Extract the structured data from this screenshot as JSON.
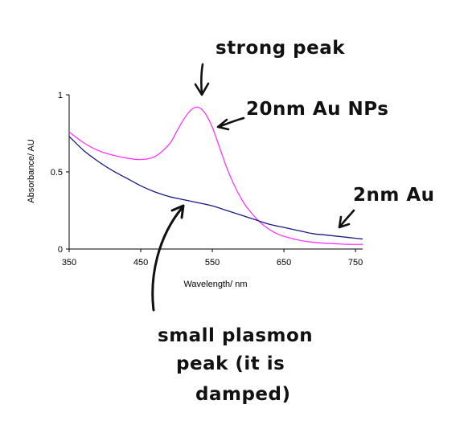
{
  "chart_data": {
    "type": "line",
    "xlabel": "Wavelength/ nm",
    "ylabel": "Absorbance/ AU",
    "xlim": [
      350,
      760
    ],
    "ylim": [
      0,
      1
    ],
    "x_ticks": [
      "350",
      "450",
      "550",
      "650",
      "750"
    ],
    "y_ticks": [
      "0",
      "0.5",
      "1"
    ],
    "series": [
      {
        "name": "20nm Au NPs",
        "color": "#ff33ff",
        "x": [
          350,
          370,
          390,
          410,
          430,
          450,
          470,
          490,
          500,
          510,
          520,
          530,
          540,
          550,
          560,
          570,
          580,
          590,
          600,
          620,
          640,
          660,
          680,
          700,
          720,
          740,
          760
        ],
        "y": [
          0.76,
          0.69,
          0.64,
          0.61,
          0.59,
          0.58,
          0.6,
          0.68,
          0.76,
          0.84,
          0.9,
          0.92,
          0.88,
          0.79,
          0.66,
          0.53,
          0.42,
          0.33,
          0.26,
          0.16,
          0.1,
          0.07,
          0.05,
          0.04,
          0.035,
          0.03,
          0.03
        ]
      },
      {
        "name": "2nm Au",
        "color": "#1a1a80",
        "x": [
          350,
          370,
          390,
          410,
          430,
          450,
          470,
          490,
          510,
          530,
          550,
          570,
          590,
          610,
          630,
          650,
          670,
          690,
          710,
          730,
          750,
          760
        ],
        "y": [
          0.73,
          0.64,
          0.57,
          0.51,
          0.46,
          0.41,
          0.37,
          0.34,
          0.32,
          0.3,
          0.28,
          0.25,
          0.22,
          0.19,
          0.16,
          0.14,
          0.12,
          0.1,
          0.09,
          0.08,
          0.07,
          0.065
        ]
      }
    ],
    "annotations": {
      "strong_peak": "strong peak",
      "label_20nm": "20nm Au NPs",
      "label_2nm": "2nm Au",
      "small_peak_line1": "small plasmon",
      "small_peak_line2": "peak (it is",
      "small_peak_line3": "damped)"
    }
  }
}
